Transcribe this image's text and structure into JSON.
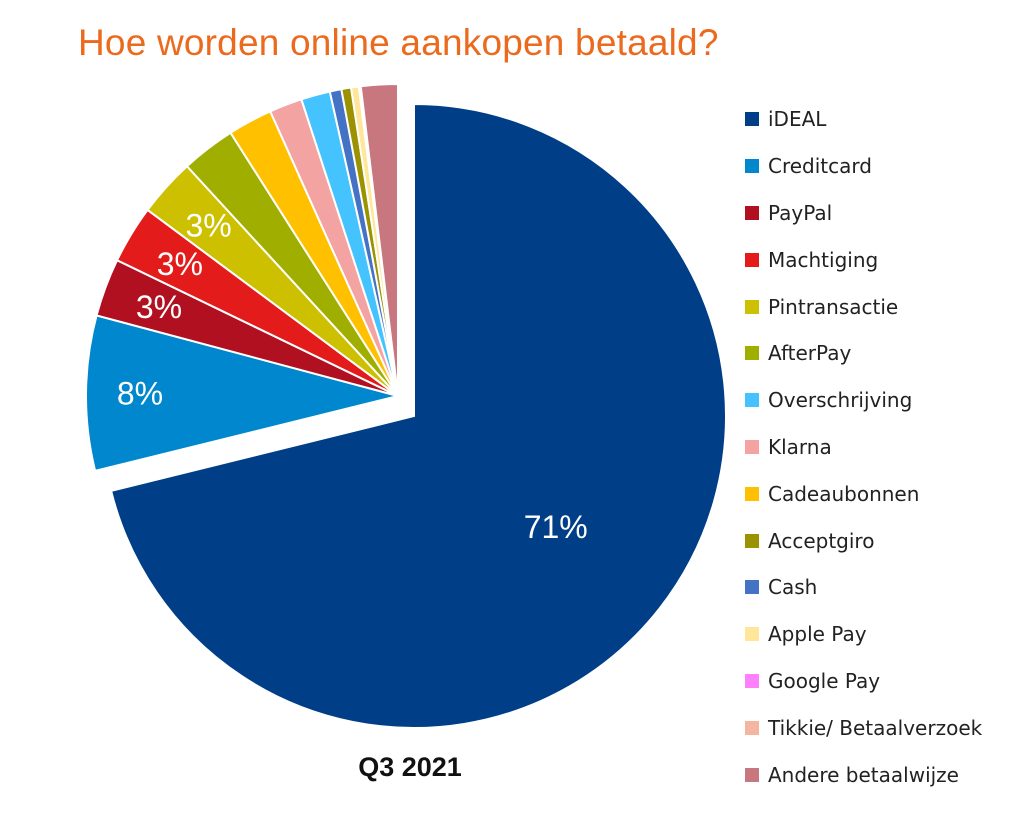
{
  "chart_data": {
    "type": "pie",
    "title": "Hoe worden online aankopen betaald?",
    "subtitle": "Q3 2021",
    "legend_position": "right",
    "slices": [
      {
        "label": "iDEAL",
        "value": 71,
        "data_label": "71%",
        "color": "#003F87"
      },
      {
        "label": "Creditcard",
        "value": 8,
        "data_label": "8%",
        "color": "#0087CD"
      },
      {
        "label": "PayPal",
        "value": 3,
        "data_label": "3%",
        "color": "#B0101F"
      },
      {
        "label": "Machtiging",
        "value": 3,
        "data_label": "3%",
        "color": "#E31B1B"
      },
      {
        "label": "Pintransactie",
        "value": 3,
        "data_label": "3%",
        "color": "#CCC000"
      },
      {
        "label": "AfterPay",
        "value": 2.8,
        "data_label": "",
        "color": "#A0AE00"
      },
      {
        "label": "Cadeaubonnen",
        "value": 2.3,
        "data_label": "",
        "color": "#FFC000"
      },
      {
        "label": "Klarna",
        "value": 1.7,
        "data_label": "",
        "color": "#F4A3A3"
      },
      {
        "label": "Overschrijving",
        "value": 1.5,
        "data_label": "",
        "color": "#45C3FF"
      },
      {
        "label": "Cash",
        "value": 0.6,
        "data_label": "",
        "color": "#4472C4"
      },
      {
        "label": "Acceptgiro",
        "value": 0.5,
        "data_label": "",
        "color": "#9A9200"
      },
      {
        "label": "Apple Pay",
        "value": 0.4,
        "data_label": "",
        "color": "#FFE699"
      },
      {
        "label": "Google Pay",
        "value": 0.05,
        "data_label": "",
        "color": "#FF80FF"
      },
      {
        "label": "Tikkie/ Betaalverzoek",
        "value": 0.05,
        "data_label": "",
        "color": "#F4B6A0"
      },
      {
        "label": "Andere betaalwijze",
        "value": 1.9,
        "data_label": "",
        "color": "#C9777E"
      }
    ],
    "legend_order": [
      "iDEAL",
      "Creditcard",
      "PayPal",
      "Machtiging",
      "Pintransactie",
      "AfterPay",
      "Overschrijving",
      "Klarna",
      "Cadeaubonnen",
      "Acceptgiro",
      "Cash",
      "Apple Pay",
      "Google Pay",
      "Tikkie/ Betaalverzoek",
      "Andere betaalwijze"
    ]
  }
}
